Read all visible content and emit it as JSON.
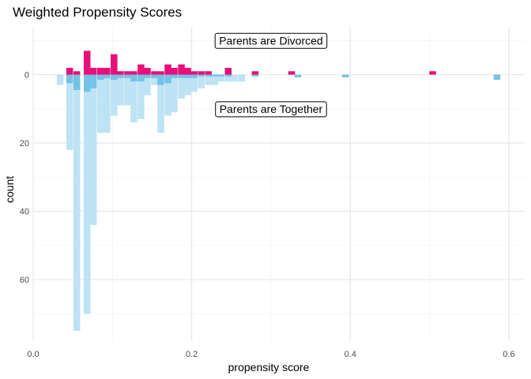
{
  "chart_data": {
    "type": "bar",
    "title": "Weighted Propensity Scores",
    "xlabel": "propensity score",
    "ylabel": "count",
    "xlim": [
      0.0,
      0.62
    ],
    "ylim": [
      -14,
      78
    ],
    "bin_width": 0.0085,
    "x_ticks": [
      0.0,
      0.2,
      0.4,
      0.6
    ],
    "x_tick_labels": [
      "0.0",
      "0.2",
      "0.4",
      "0.6"
    ],
    "y_ticks": [
      0,
      20,
      40,
      60
    ],
    "y_tick_labels": [
      "0",
      "20",
      "40",
      "60"
    ],
    "grid": true,
    "colors": {
      "divorced": "#e7107a",
      "together_unweighted": "#bde3f4",
      "together_weighted": "#74c2e6"
    },
    "annotations": [
      {
        "label": "Parents are Divorced",
        "x": 0.3,
        "y": -10
      },
      {
        "label": "Parents are Together",
        "x": 0.3,
        "y": 10
      }
    ],
    "series": [
      {
        "group": "divorced",
        "direction": "up",
        "x": [
          0.046,
          0.055,
          0.068,
          0.076,
          0.085,
          0.093,
          0.102,
          0.11,
          0.119,
          0.127,
          0.136,
          0.144,
          0.153,
          0.161,
          0.17,
          0.178,
          0.187,
          0.195,
          0.203,
          0.212,
          0.221,
          0.246,
          0.28,
          0.326,
          0.504
        ],
        "values": [
          2,
          1,
          7,
          2,
          2,
          2,
          6,
          1,
          1,
          1,
          3,
          2,
          1,
          1,
          3,
          2,
          3,
          2,
          1,
          1,
          1,
          2,
          1,
          1,
          1
        ]
      },
      {
        "group": "together_unweighted",
        "direction": "down",
        "x": [
          0.034,
          0.046,
          0.055,
          0.068,
          0.076,
          0.085,
          0.093,
          0.102,
          0.11,
          0.119,
          0.127,
          0.136,
          0.144,
          0.153,
          0.161,
          0.17,
          0.178,
          0.187,
          0.195,
          0.203,
          0.212,
          0.221,
          0.229,
          0.237,
          0.246,
          0.254,
          0.263
        ],
        "values": [
          3,
          22,
          75,
          70,
          44,
          17,
          17,
          12,
          9,
          9,
          14,
          13,
          6,
          3,
          17,
          12,
          11,
          7,
          6,
          5,
          4,
          3,
          3,
          2,
          2,
          2,
          2
        ]
      },
      {
        "group": "together_weighted",
        "direction": "down",
        "x": [
          0.046,
          0.055,
          0.068,
          0.076,
          0.085,
          0.093,
          0.102,
          0.11,
          0.119,
          0.127,
          0.136,
          0.144,
          0.153,
          0.161,
          0.17,
          0.178,
          0.187,
          0.195,
          0.203,
          0.212,
          0.221,
          0.229,
          0.237,
          0.246,
          0.28,
          0.334,
          0.394,
          0.585
        ],
        "values": [
          2.5,
          4.5,
          5,
          4,
          1.5,
          1,
          1.5,
          1,
          1,
          2,
          2,
          1,
          1,
          3,
          2.5,
          1,
          1,
          1,
          1,
          0.5,
          0.5,
          0.5,
          0.5,
          0.5,
          0.5,
          0.8,
          0.8,
          1.5
        ]
      }
    ]
  }
}
